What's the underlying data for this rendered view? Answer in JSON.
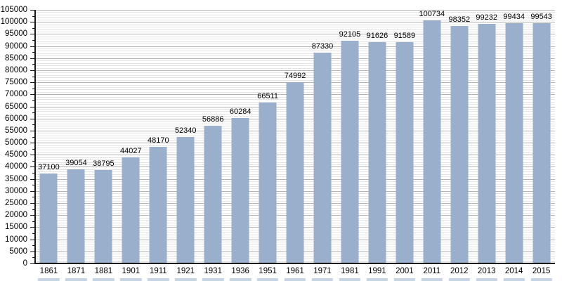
{
  "chart_data": {
    "type": "bar",
    "title": "",
    "xlabel": "",
    "ylabel": "",
    "categories": [
      "1861",
      "1871",
      "1881",
      "1901",
      "1911",
      "1921",
      "1931",
      "1936",
      "1951",
      "1961",
      "1971",
      "1981",
      "1991",
      "2001",
      "2011",
      "2012",
      "2013",
      "2014",
      "2015"
    ],
    "values": [
      37100,
      39054,
      38795,
      44027,
      48170,
      52340,
      56886,
      60284,
      66511,
      74992,
      87330,
      92105,
      91626,
      91589,
      100734,
      98352,
      99232,
      99434,
      99543
    ],
    "ylim": [
      0,
      105000
    ],
    "ytick_step": 5000,
    "y_axis_minor_tick_step": 2500,
    "minor_gridline_step": 1000,
    "grid": "on",
    "legend": "none",
    "colors": {
      "bar": "#99AFCB",
      "bottom_strip": "#C6D4E3",
      "major_gridline": "#b3b3b3",
      "minor_gridline": "#e4e4e4",
      "axis": "#1a1a1a",
      "text": "#000000"
    }
  }
}
